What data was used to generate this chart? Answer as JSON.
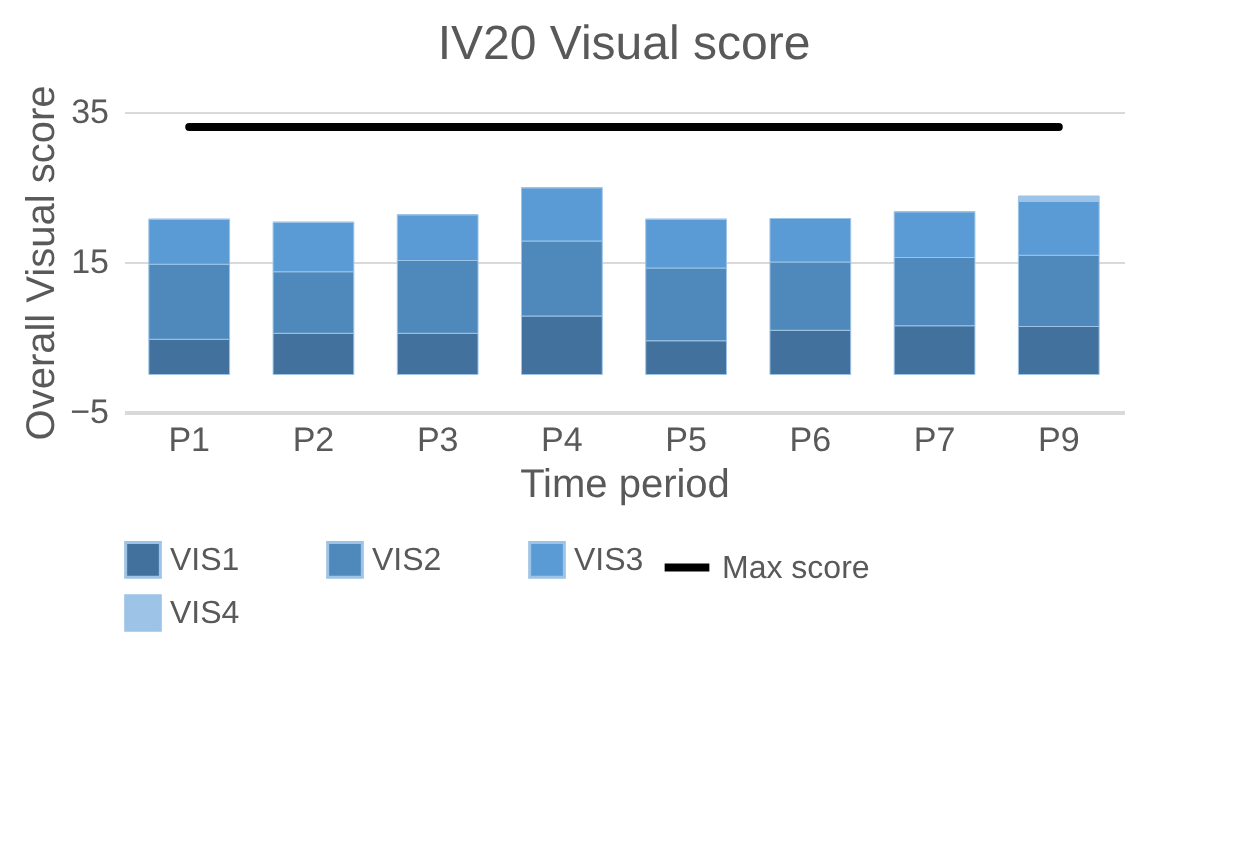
{
  "chart_data": {
    "type": "bar",
    "title": "IV20 Visual score",
    "xlabel": "Time period",
    "ylabel": "Overall Visual score",
    "categories": [
      "P1",
      "P2",
      "P3",
      "P4",
      "P5",
      "P6",
      "P7",
      "P9"
    ],
    "stacked": true,
    "series": [
      {
        "name": "VIS1",
        "color": "#41719c",
        "values": [
          4.7,
          5.5,
          5.5,
          7.8,
          4.5,
          5.9,
          6.5,
          6.4
        ]
      },
      {
        "name": "VIS2",
        "color": "#4f88bb",
        "values": [
          10,
          8.2,
          9.7,
          10,
          9.7,
          9.1,
          9.1,
          9.5
        ]
      },
      {
        "name": "VIS3",
        "color": "#5b9bd5",
        "values": [
          6,
          6.6,
          6.1,
          7.1,
          6.5,
          5.8,
          6.1,
          7.2
        ]
      },
      {
        "name": "VIS4",
        "color": "#9dc3e6",
        "values": [
          0,
          0,
          0,
          0,
          0,
          0,
          0,
          0.7
        ]
      },
      {
        "name": "Max score",
        "type": "line",
        "color": "#000000",
        "values": [
          33,
          33,
          33,
          33,
          33,
          33,
          33,
          33
        ]
      }
    ],
    "ylim": [
      -5,
      35
    ],
    "yticks": [
      -5,
      15,
      35
    ],
    "grid": "y",
    "legend": "bottom"
  }
}
